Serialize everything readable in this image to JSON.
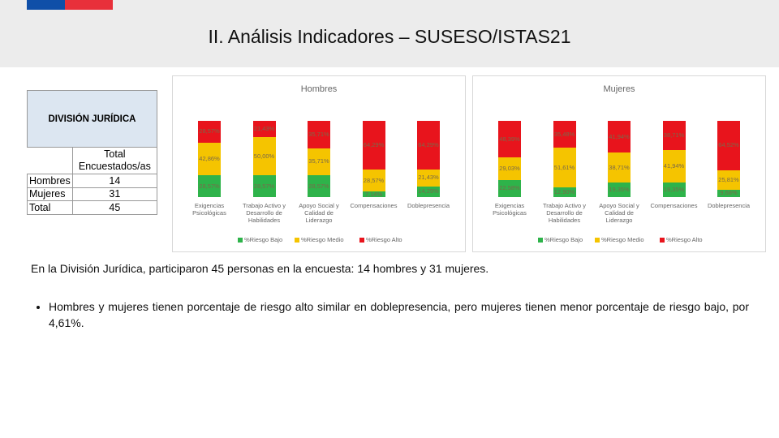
{
  "header": {
    "title": "II. Análisis Indicadores – SUSESO/ISTAS21"
  },
  "table": {
    "title": "DIVISIÓN JURÍDICA",
    "column_header": "Total Encuestados/as",
    "rows": [
      [
        "Hombres",
        14
      ],
      [
        "Mujeres",
        31
      ],
      [
        "Total",
        45
      ]
    ]
  },
  "chart_data": [
    {
      "type": "bar",
      "stacked": true,
      "title": "Hombres",
      "categories": [
        "Exigencias Psicológicas",
        "Trabajo Activo y Desarrollo de Habilidades",
        "Apoyo Social y Calidad de Liderazgo",
        "Compensaciones",
        "Doblepresencia"
      ],
      "ylim": [
        0,
        100
      ],
      "series": [
        {
          "name": "%Riesgo Bajo",
          "color": "#2eb34a",
          "values": [
            28.57,
            28.57,
            28.57,
            7.14,
            14.29
          ],
          "value_labels": [
            "28,57%",
            "28,57%",
            "28,57%",
            "7,14%",
            "14,29%"
          ]
        },
        {
          "name": "%Riesgo Medio",
          "color": "#f5c400",
          "values": [
            42.86,
            50.0,
            35.71,
            28.57,
            21.43
          ],
          "value_labels": [
            "42,86%",
            "50,00%",
            "35,71%",
            "28,57%",
            "21,43%"
          ]
        },
        {
          "name": "%Riesgo Alto",
          "color": "#e8141c",
          "values": [
            28.57,
            21.43,
            35.71,
            64.29,
            64.29
          ],
          "value_labels": [
            "28,57%",
            "21,43%",
            "35,71%",
            "64,29%",
            "64,29%"
          ]
        }
      ]
    },
    {
      "type": "bar",
      "stacked": true,
      "title": "Mujeres",
      "categories": [
        "Exigencias Psicológicas",
        "Trabajo Activo y Desarrollo de Habilidades",
        "Apoyo Social y Calidad de Liderazgo",
        "Compensaciones",
        "Doblepresencia"
      ],
      "ylim": [
        0,
        100
      ],
      "series": [
        {
          "name": "%Riesgo Bajo",
          "color": "#2eb34a",
          "values": [
            22.58,
            12.9,
            19.35,
            19.35,
            9.68
          ],
          "value_labels": [
            "22,58%",
            "12,90%",
            "19,35%",
            "19,35%",
            "9,68%"
          ]
        },
        {
          "name": "%Riesgo Medio",
          "color": "#f5c400",
          "values": [
            29.03,
            51.61,
            38.71,
            41.94,
            25.81
          ],
          "value_labels": [
            "29,03%",
            "51,61%",
            "38,71%",
            "41,94%",
            "25,81%"
          ]
        },
        {
          "name": "%Riesgo Alto",
          "color": "#e8141c",
          "values": [
            48.39,
            35.48,
            41.94,
            38.71,
            64.52
          ],
          "value_labels": [
            "48,39%",
            "35,48%",
            "41,94%",
            "38,71%",
            "64,52%"
          ]
        }
      ]
    }
  ],
  "text": {
    "paragraph": "En la División Jurídica, participaron 45 personas en la encuesta: 14 hombres y 31 mujeres.",
    "bullet": "Hombres y mujeres tienen porcentaje de riesgo alto similar en doblepresencia, pero mujeres tienen menor porcentaje de riesgo bajo, por 4,61%."
  }
}
